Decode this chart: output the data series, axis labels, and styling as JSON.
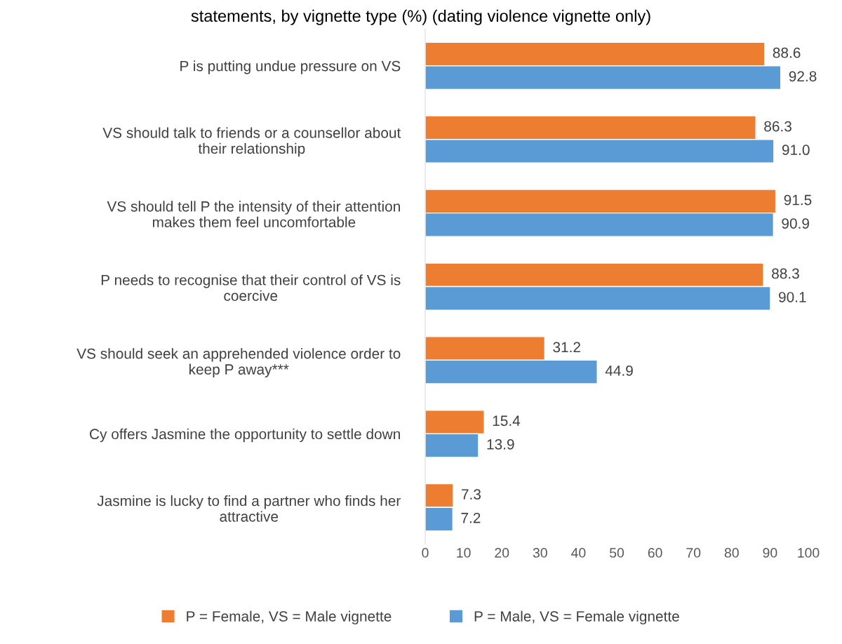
{
  "chart_data": {
    "type": "bar",
    "orientation": "horizontal",
    "title": "statements, by vignette type (%) (dating violence vignette only)",
    "categories": [
      "P is putting undue pressure on VS",
      "VS should talk to friends or a counsellor about\ntheir relationship",
      "VS should tell P the intensity of their attention\nmakes them feel uncomfortable",
      "P needs to recognise that their control of VS is\ncoercive",
      "VS should seek an apprehended violence order to\nkeep P away***",
      "Cy offers Jasmine the opportunity to settle down",
      "Jasmine is lucky to find a partner who finds her\nattractive"
    ],
    "series": [
      {
        "name": "P = Female, VS = Male vignette",
        "color": "#ed7d31",
        "values": [
          88.6,
          86.3,
          91.5,
          88.3,
          31.2,
          15.4,
          7.3
        ],
        "value_labels": [
          "88.6",
          "86.3",
          "91.5",
          "88.3",
          "31.2",
          "15.4",
          "7.3"
        ]
      },
      {
        "name": "P = Male, VS = Female vignette",
        "color": "#5b9bd5",
        "values": [
          92.8,
          91.0,
          90.9,
          90.1,
          44.9,
          13.9,
          7.2
        ],
        "value_labels": [
          "92.8",
          "91.0",
          "90.9",
          "90.1",
          "44.9",
          "13.9",
          "7.2"
        ]
      }
    ],
    "xlim": [
      0,
      100
    ],
    "xticks": [
      0,
      10,
      20,
      30,
      40,
      50,
      60,
      70,
      80,
      90,
      100
    ],
    "grid": false,
    "legend": "bottom"
  }
}
